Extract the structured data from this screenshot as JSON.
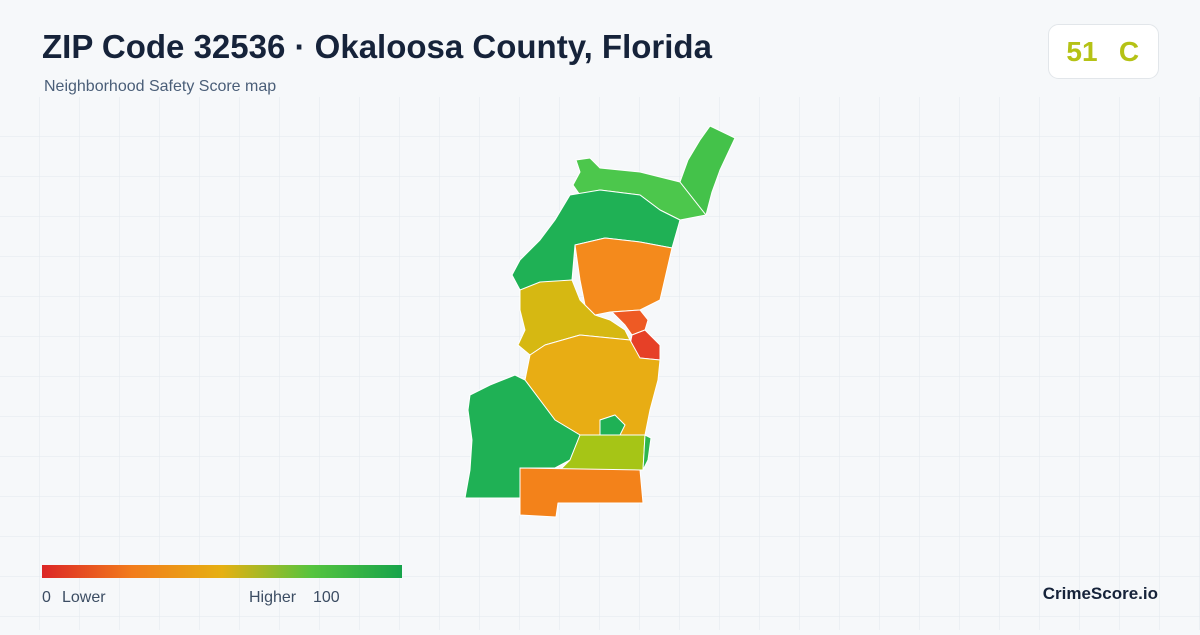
{
  "header": {
    "title": "ZIP Code 32536 · Okaloosa County, Florida",
    "subtitle": "Neighborhood Safety Score map"
  },
  "score": {
    "value": "51",
    "grade": "C"
  },
  "legend": {
    "min": "0",
    "min_label": "Lower",
    "max_label": "Higher",
    "max": "100"
  },
  "footer": {
    "brand": "CrimeScore.io"
  }
}
